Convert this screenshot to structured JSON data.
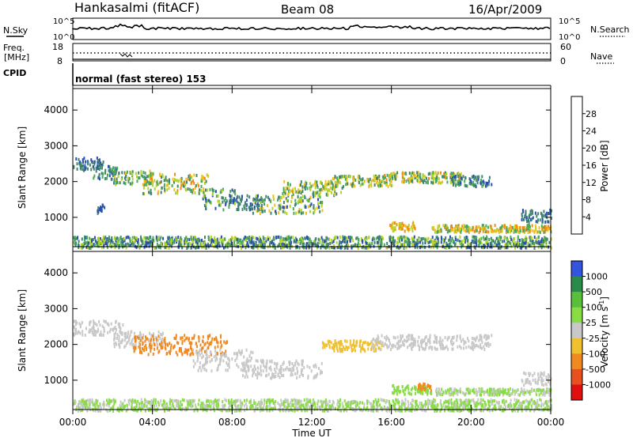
{
  "header": {
    "station": "Hankasalmi (fitACF)",
    "beam": "Beam 08",
    "date": "16/Apr/2009"
  },
  "summary_panels": {
    "nsky_label": "N.Sky",
    "nsearch_label": "N.Search",
    "noise_ticks": [
      "10^5",
      "10^0"
    ],
    "freq_label_top": "Freq.",
    "freq_label_unit": "[MHz]",
    "freq_ticks": [
      "18",
      "8"
    ],
    "nave_label": "Nave",
    "nave_ticks": [
      "60",
      "0"
    ],
    "cpid_label": "CPID",
    "cpid_text": "normal (fast stereo) 153"
  },
  "axes": {
    "xlabel": "Time UT",
    "xticks": [
      "00:00",
      "04:00",
      "08:00",
      "12:00",
      "16:00",
      "20:00",
      "00:00"
    ],
    "ylabel": "Slant Range [km]",
    "yticks": [
      "1000",
      "2000",
      "3000",
      "4000"
    ]
  },
  "colorbars": {
    "power": {
      "label": "Power [dB]",
      "ticks": [
        "4",
        "8",
        "12",
        "16",
        "20",
        "24",
        "28"
      ],
      "colors": [
        "#1a2ee6",
        "#2a4fb0",
        "#3f8470",
        "#4aa85a",
        "#b5d22a",
        "#f0c020",
        "#f08a18",
        "#e03010"
      ]
    },
    "velocity": {
      "label": "Velocity [m s",
      "label_sup": "-1",
      "label_tail": "]",
      "ticks": [
        "1000",
        "500",
        "100",
        "25",
        "-25",
        "-100",
        "-500",
        "-1000"
      ],
      "colors": [
        "#3355dd",
        "#2a8a4a",
        "#5abf3a",
        "#88dd44",
        "#c8c8c8",
        "#f0c030",
        "#f08a20",
        "#e85020",
        "#e01010"
      ]
    }
  },
  "chart_data": [
    {
      "type": "heatmap",
      "name": "power",
      "xlim": [
        0,
        24
      ],
      "ylim": [
        180,
        4600
      ],
      "bands": [
        {
          "x": [
            0.0,
            1.5
          ],
          "y": [
            2350,
            2700
          ],
          "values": [
            6,
            10
          ]
        },
        {
          "x": [
            1.0,
            2.2
          ],
          "y": [
            2100,
            2500
          ],
          "values": [
            6,
            14
          ]
        },
        {
          "x": [
            2.0,
            4.0
          ],
          "y": [
            1950,
            2350
          ],
          "values": [
            8,
            22
          ]
        },
        {
          "x": [
            3.5,
            6.8
          ],
          "y": [
            1700,
            2250
          ],
          "values": [
            8,
            26
          ]
        },
        {
          "x": [
            6.5,
            8.2
          ],
          "y": [
            1250,
            1850
          ],
          "values": [
            6,
            18
          ]
        },
        {
          "x": [
            8.0,
            9.5
          ],
          "y": [
            1250,
            1650
          ],
          "values": [
            6,
            12
          ]
        },
        {
          "x": [
            9.0,
            12.5
          ],
          "y": [
            1150,
            1650
          ],
          "values": [
            6,
            24
          ]
        },
        {
          "x": [
            10.5,
            13.5
          ],
          "y": [
            1650,
            2050
          ],
          "values": [
            8,
            24
          ]
        },
        {
          "x": [
            13.0,
            16.0
          ],
          "y": [
            1900,
            2200
          ],
          "values": [
            8,
            24
          ]
        },
        {
          "x": [
            15.5,
            19.5
          ],
          "y": [
            2000,
            2300
          ],
          "values": [
            8,
            26
          ]
        },
        {
          "x": [
            19.0,
            21.0
          ],
          "y": [
            1900,
            2200
          ],
          "values": [
            6,
            14
          ]
        },
        {
          "x": [
            15.9,
            17.2
          ],
          "y": [
            650,
            900
          ],
          "values": [
            16,
            28
          ]
        },
        {
          "x": [
            18.0,
            24.0
          ],
          "y": [
            620,
            820
          ],
          "values": [
            12,
            28
          ]
        },
        {
          "x": [
            22.5,
            24.0
          ],
          "y": [
            900,
            1250
          ],
          "values": [
            6,
            12
          ]
        },
        {
          "x": [
            1.2,
            1.6
          ],
          "y": [
            1150,
            1400
          ],
          "values": [
            6,
            10
          ]
        },
        {
          "x": [
            0.0,
            24.0
          ],
          "y": [
            180,
            500
          ],
          "values": [
            4,
            20
          ]
        }
      ]
    },
    {
      "type": "heatmap",
      "name": "velocity",
      "xlim": [
        0,
        24
      ],
      "ylim": [
        180,
        4600
      ],
      "bands": [
        {
          "x": [
            0.0,
            2.5
          ],
          "y": [
            2300,
            2700
          ],
          "values": [
            0,
            0
          ]
        },
        {
          "x": [
            2.0,
            4.5
          ],
          "y": [
            1950,
            2400
          ],
          "values": [
            0,
            0
          ]
        },
        {
          "x": [
            3.0,
            7.8
          ],
          "y": [
            1750,
            2300
          ],
          "values": [
            -300,
            -100
          ]
        },
        {
          "x": [
            6.0,
            9.0
          ],
          "y": [
            1300,
            1900
          ],
          "values": [
            0,
            0
          ]
        },
        {
          "x": [
            8.5,
            12.5
          ],
          "y": [
            1100,
            1600
          ],
          "values": [
            0,
            0
          ]
        },
        {
          "x": [
            12.5,
            15.5
          ],
          "y": [
            1850,
            2150
          ],
          "values": [
            -100,
            -60
          ]
        },
        {
          "x": [
            15.0,
            21.0
          ],
          "y": [
            1900,
            2300
          ],
          "values": [
            0,
            0
          ]
        },
        {
          "x": [
            16.0,
            18.0
          ],
          "y": [
            650,
            900
          ],
          "values": [
            60,
            100
          ]
        },
        {
          "x": [
            17.3,
            18.0
          ],
          "y": [
            750,
            950
          ],
          "values": [
            -300,
            -100
          ]
        },
        {
          "x": [
            18.2,
            24.0
          ],
          "y": [
            620,
            800
          ],
          "values": [
            0,
            60
          ]
        },
        {
          "x": [
            22.5,
            24.0
          ],
          "y": [
            900,
            1250
          ],
          "values": [
            0,
            0
          ]
        },
        {
          "x": [
            0.0,
            24.0
          ],
          "y": [
            180,
            500
          ],
          "values": [
            0,
            60
          ]
        }
      ]
    }
  ]
}
